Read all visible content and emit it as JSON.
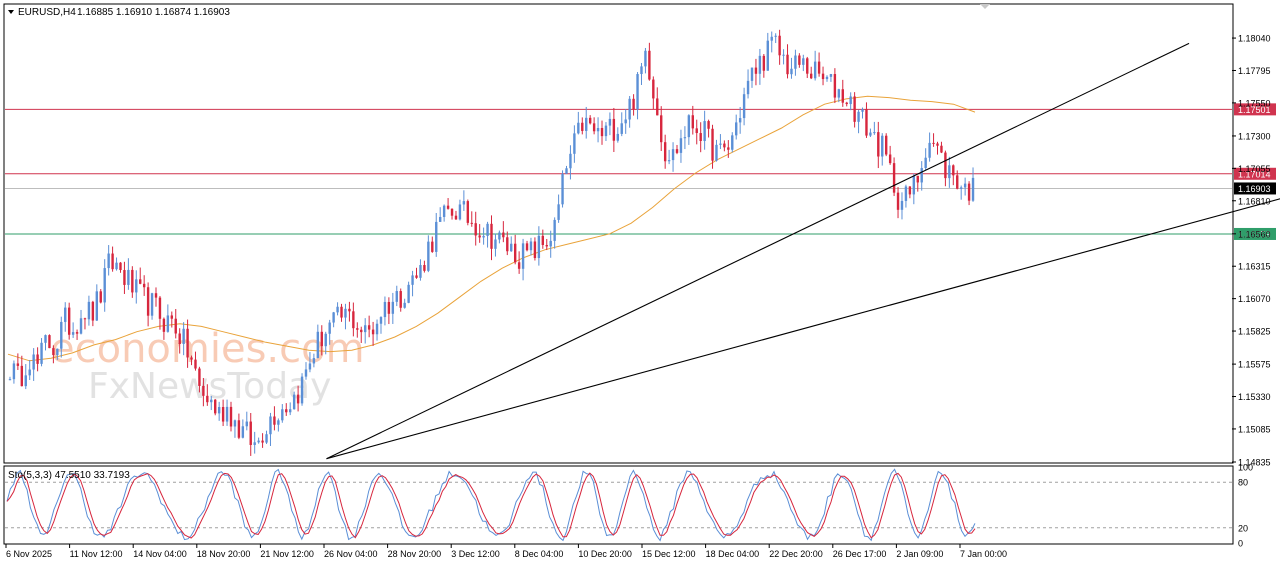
{
  "header": {
    "symbol_label": "EURUSD,H4",
    "ohlc": "1.16885 1.16910 1.16874 1.16903"
  },
  "watermark": {
    "line1": "economies.com",
    "line2": "FxNewsToday"
  },
  "colors": {
    "bull": "#5b8fd6",
    "bear": "#d7263d",
    "ma": "#e9a33a",
    "resistance": "#d0344f",
    "support": "#2f9e6a",
    "trendline": "#000000",
    "current": "#000000"
  },
  "chart_data": [
    {
      "type": "candlestick",
      "panel": "price",
      "ylim": [
        1.14835,
        1.1829
      ],
      "y_ticks": [
        "1.18040",
        "1.17795",
        "1.17550",
        "1.17300",
        "1.17055",
        "1.16810",
        "1.16560",
        "1.16315",
        "1.16070",
        "1.15825",
        "1.15575",
        "1.15330",
        "1.15085",
        "1.14835"
      ],
      "x_ticks": [
        "6 Nov 2025",
        "11 Nov 12:00",
        "14 Nov 04:00",
        "18 Nov 20:00",
        "21 Nov 12:00",
        "26 Nov 04:00",
        "28 Nov 20:00",
        "3 Dec 12:00",
        "8 Dec 04:00",
        "10 Dec 20:00",
        "15 Dec 12:00",
        "18 Dec 04:00",
        "22 Dec 20:00",
        "26 Dec 17:00",
        "2 Jan 09:00",
        "7 Jan 00:00"
      ],
      "close_path": [
        1.1555,
        1.1545,
        1.1565,
        1.1555,
        1.1575,
        1.157,
        1.159,
        1.1585,
        1.16,
        1.1595,
        1.161,
        1.1635,
        1.163,
        1.162,
        1.161,
        1.1605,
        1.16,
        1.159,
        1.159,
        1.1575,
        1.156,
        1.1535,
        1.153,
        1.152,
        1.1525,
        1.151,
        1.1505,
        1.1495,
        1.151,
        1.152,
        1.1525,
        1.153,
        1.154,
        1.156,
        1.1575,
        1.1585,
        1.159,
        1.1595,
        1.159,
        1.158,
        1.1585,
        1.16,
        1.1605,
        1.161,
        1.162,
        1.1625,
        1.1645,
        1.166,
        1.167,
        1.1675,
        1.167,
        1.1665,
        1.166,
        1.1655,
        1.165,
        1.1645,
        1.164,
        1.164,
        1.1645,
        1.165,
        1.166,
        1.17,
        1.172,
        1.174,
        1.1735,
        1.173,
        1.1735,
        1.174,
        1.175,
        1.1765,
        1.1795,
        1.176,
        1.172,
        1.1715,
        1.173,
        1.174,
        1.1735,
        1.1725,
        1.1715,
        1.172,
        1.174,
        1.1765,
        1.178,
        1.179,
        1.18,
        1.179,
        1.178,
        1.1785,
        1.178,
        1.1775,
        1.177,
        1.1765,
        1.176,
        1.175,
        1.174,
        1.173,
        1.172,
        1.17,
        1.168,
        1.1685,
        1.17,
        1.173,
        1.172,
        1.1705,
        1.17,
        1.169,
        1.169
      ],
      "moving_average": {
        "path": [
          1.1565,
          1.156,
          1.1562,
          1.1566,
          1.1572,
          1.1576,
          1.1582,
          1.1586,
          1.1588,
          1.1586,
          1.1582,
          1.1578,
          1.1574,
          1.1571,
          1.1568,
          1.1567,
          1.1568,
          1.1572,
          1.1578,
          1.1586,
          1.1596,
          1.1608,
          1.162,
          1.163,
          1.1638,
          1.1644,
          1.1648,
          1.1652,
          1.1656,
          1.1664,
          1.1676,
          1.169,
          1.1702,
          1.1712,
          1.172,
          1.1728,
          1.1736,
          1.1746,
          1.1754,
          1.1758,
          1.176,
          1.1759,
          1.1757,
          1.1756,
          1.1754,
          1.1748
        ]
      },
      "horizontal_levels": [
        {
          "value": 1.17501,
          "label": "1.17501",
          "style": "resistance"
        },
        {
          "value": 1.17014,
          "label": "1.17014",
          "style": "resistance"
        },
        {
          "value": 1.16903,
          "label": "1.16903",
          "style": "current"
        },
        {
          "value": 1.16559,
          "label": "1.16559",
          "style": "support"
        }
      ],
      "trendlines": [
        {
          "x": [
            0.262,
            0.965
          ],
          "y": [
            1.1486,
            1.18
          ]
        },
        {
          "x": [
            0.262,
            1.148
          ],
          "y": [
            1.1486,
            1.171
          ]
        }
      ]
    },
    {
      "type": "line",
      "panel": "oscillator",
      "title": "Sto(5,3,3) 47.5510 33.7193",
      "ylim": [
        0,
        100
      ],
      "levels": [
        80,
        20
      ],
      "y_ticks": [
        "100",
        "80",
        "20",
        "0"
      ],
      "series": [
        {
          "name": "main",
          "color": "#5b8fd6"
        },
        {
          "name": "signal",
          "color": "#d7263d"
        }
      ]
    }
  ]
}
